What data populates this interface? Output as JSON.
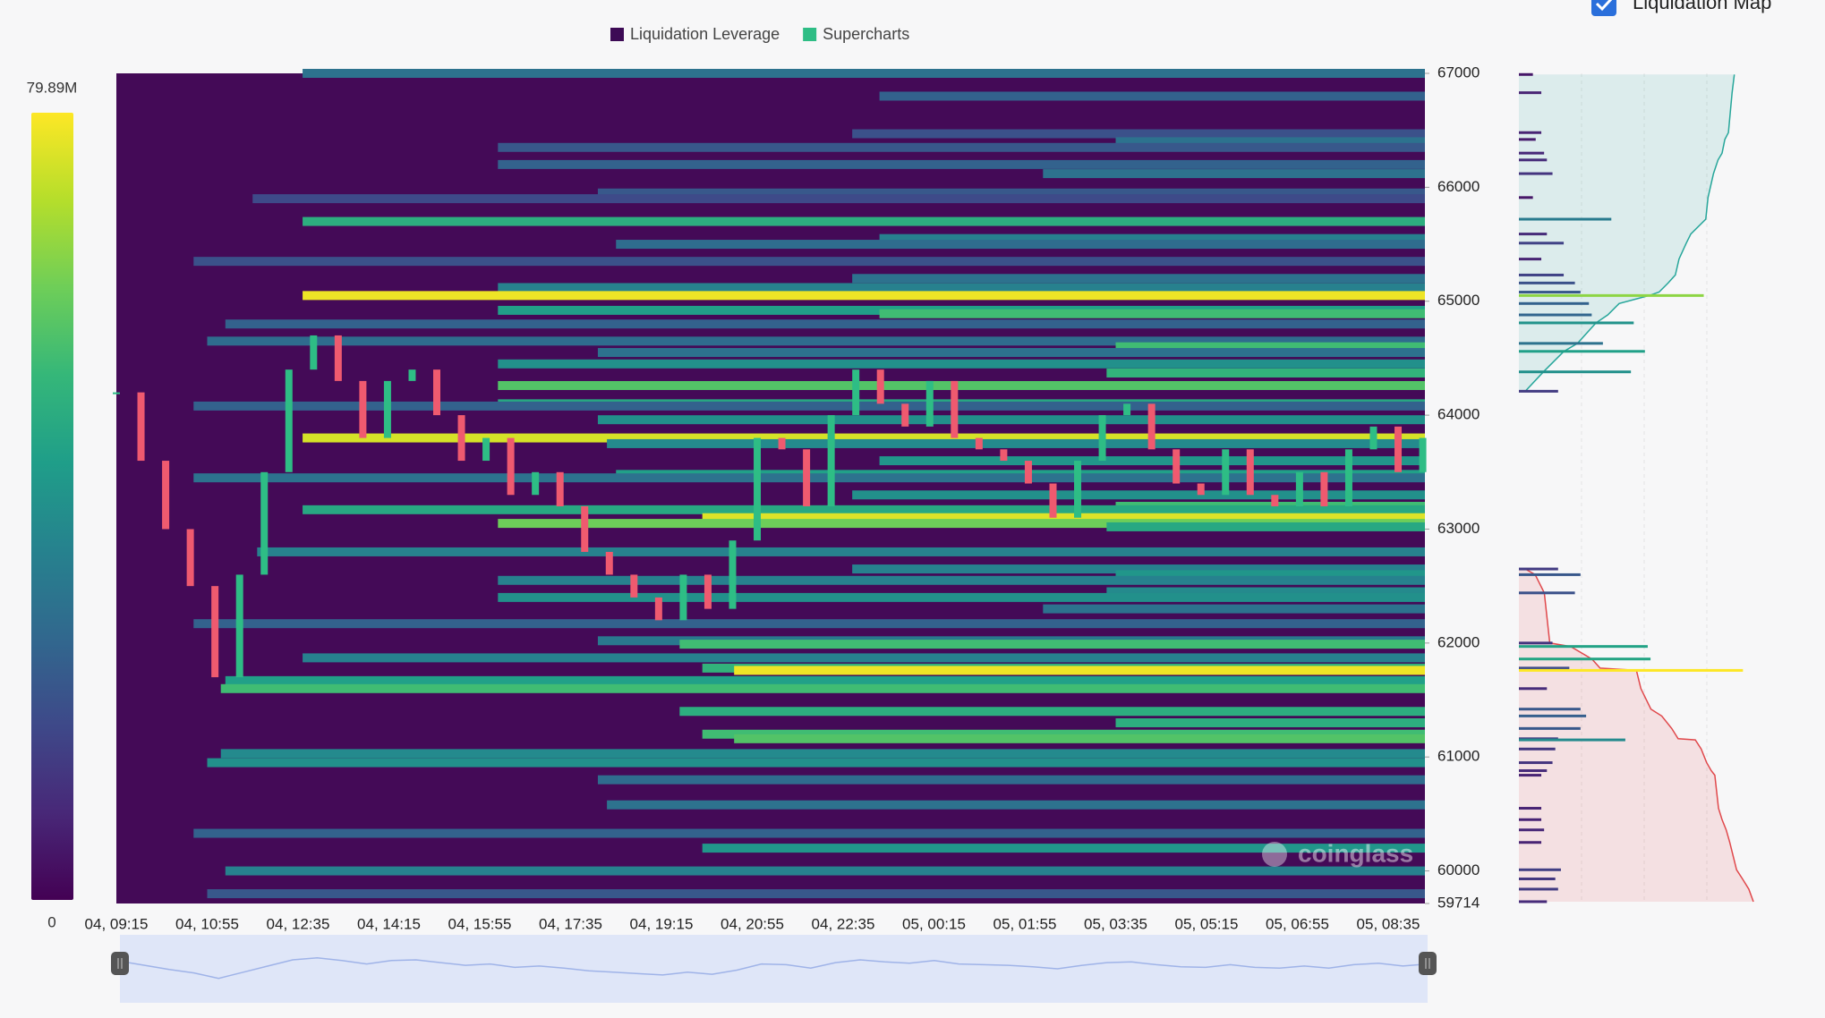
{
  "chart_data": {
    "type": "heatmap",
    "legend": [
      {
        "name": "Liquidation Leverage",
        "color": "#3d0a55"
      },
      {
        "name": "Supercharts",
        "color": "#2ebd85"
      }
    ],
    "categories": [
      "04, 09:15",
      "04, 10:55",
      "04, 12:35",
      "04, 14:15",
      "04, 15:55",
      "04, 17:35",
      "04, 19:15",
      "04, 20:55",
      "04, 22:35",
      "05, 00:15",
      "05, 01:55",
      "05, 03:35",
      "05, 05:15",
      "05, 06:55",
      "05, 08:35"
    ],
    "ylim": [
      59714,
      67000
    ],
    "yticks": [
      59714,
      60000,
      61000,
      62000,
      63000,
      64000,
      65000,
      66000,
      67000
    ],
    "zticks": [
      0,
      {
        "value": 79.89,
        "label": "79.89M"
      }
    ],
    "colorscale": [
      "#440154",
      "#482878",
      "#3e4989",
      "#31688e",
      "#26828e",
      "#1f9e89",
      "#35b779",
      "#6ece58",
      "#b5de2b",
      "#fde725"
    ],
    "bands": [
      [
        67000,
        2.05,
        30
      ],
      [
        66800,
        8.4,
        25
      ],
      [
        66470,
        8.1,
        20
      ],
      [
        66400,
        11.0,
        30
      ],
      [
        66350,
        4.2,
        22
      ],
      [
        66200,
        4.2,
        25
      ],
      [
        66120,
        10.2,
        30
      ],
      [
        65950,
        5.3,
        22
      ],
      [
        65900,
        1.5,
        18
      ],
      [
        65700,
        2.05,
        50
      ],
      [
        65550,
        8.4,
        35
      ],
      [
        65500,
        5.5,
        28
      ],
      [
        65350,
        0.85,
        20
      ],
      [
        65200,
        8.1,
        30
      ],
      [
        65120,
        4.2,
        35
      ],
      [
        65050,
        2.05,
        78
      ],
      [
        64920,
        4.2,
        45
      ],
      [
        64890,
        8.4,
        55
      ],
      [
        64800,
        1.2,
        25
      ],
      [
        64650,
        1.0,
        28
      ],
      [
        64600,
        11.0,
        55
      ],
      [
        64550,
        5.3,
        30
      ],
      [
        64450,
        4.2,
        40
      ],
      [
        64370,
        10.9,
        52
      ],
      [
        64260,
        4.2,
        58
      ],
      [
        64100,
        4.2,
        48
      ],
      [
        64080,
        0.85,
        25
      ],
      [
        63960,
        5.3,
        40
      ],
      [
        63800,
        2.05,
        75
      ],
      [
        63750,
        5.4,
        38
      ],
      [
        63600,
        8.4,
        42
      ],
      [
        63480,
        5.5,
        45
      ],
      [
        63450,
        0.85,
        30
      ],
      [
        63300,
        8.1,
        40
      ],
      [
        63200,
        11.0,
        55
      ],
      [
        63170,
        2.05,
        48
      ],
      [
        63100,
        6.45,
        76
      ],
      [
        63050,
        4.2,
        62
      ],
      [
        63020,
        10.9,
        48
      ],
      [
        62800,
        1.55,
        35
      ],
      [
        62650,
        8.1,
        35
      ],
      [
        62600,
        11.0,
        42
      ],
      [
        62550,
        4.2,
        35
      ],
      [
        62450,
        10.9,
        38
      ],
      [
        62400,
        4.2,
        40
      ],
      [
        62300,
        10.2,
        30
      ],
      [
        62170,
        0.85,
        25
      ],
      [
        62020,
        5.3,
        32
      ],
      [
        61990,
        6.2,
        55
      ],
      [
        61870,
        2.05,
        35
      ],
      [
        61780,
        6.45,
        52
      ],
      [
        61760,
        6.8,
        78
      ],
      [
        61670,
        1.2,
        45
      ],
      [
        61600,
        1.15,
        55
      ],
      [
        61400,
        6.2,
        50
      ],
      [
        61300,
        11.0,
        50
      ],
      [
        61200,
        6.45,
        55
      ],
      [
        61160,
        6.8,
        58
      ],
      [
        61030,
        1.15,
        38
      ],
      [
        60950,
        1.0,
        40
      ],
      [
        60800,
        5.3,
        28
      ],
      [
        60580,
        5.4,
        30
      ],
      [
        60330,
        0.85,
        25
      ],
      [
        60200,
        6.45,
        42
      ],
      [
        60000,
        1.2,
        35
      ],
      [
        59800,
        1.0,
        22
      ]
    ],
    "price": [
      64200,
      63600,
      63000,
      62500,
      61700,
      62600,
      63500,
      64400,
      64700,
      64300,
      63800,
      64300,
      64400,
      64000,
      63600,
      63800,
      63300,
      63500,
      63200,
      62800,
      62600,
      62400,
      62200,
      62600,
      62300,
      62900,
      63800,
      63700,
      63200,
      64000,
      64400,
      64100,
      63900,
      64300,
      63800,
      63700,
      63600,
      63400,
      63100,
      63600,
      64000,
      64100,
      63700,
      63400,
      63300,
      63700,
      63300,
      63200,
      63500,
      63200,
      63700,
      63900,
      63500,
      63800
    ],
    "up_color": "#2ebd85",
    "down_color": "#ef5a6f",
    "watermark": "coinglass",
    "liquidation_map": {
      "label": "Liquidation Map",
      "short_color": "#26a69a",
      "long_color": "#e0484b",
      "bars": [
        [
          66990,
          5
        ],
        [
          66830,
          8
        ],
        [
          66480,
          8
        ],
        [
          66420,
          6
        ],
        [
          66300,
          9
        ],
        [
          66240,
          10
        ],
        [
          66120,
          12
        ],
        [
          65910,
          5
        ],
        [
          65720,
          33
        ],
        [
          65590,
          10
        ],
        [
          65510,
          16
        ],
        [
          65370,
          8
        ],
        [
          65230,
          16
        ],
        [
          65160,
          20
        ],
        [
          65080,
          22
        ],
        [
          65050,
          66
        ],
        [
          64980,
          25
        ],
        [
          64880,
          26
        ],
        [
          64810,
          41
        ],
        [
          64630,
          30
        ],
        [
          64560,
          45
        ],
        [
          64380,
          40
        ],
        [
          64210,
          14
        ],
        [
          62650,
          14
        ],
        [
          62600,
          22
        ],
        [
          62440,
          20
        ],
        [
          62000,
          12
        ],
        [
          61970,
          46
        ],
        [
          61860,
          47
        ],
        [
          61780,
          18
        ],
        [
          61760,
          80
        ],
        [
          61600,
          10
        ],
        [
          61420,
          22
        ],
        [
          61360,
          24
        ],
        [
          61250,
          22
        ],
        [
          61160,
          14
        ],
        [
          61150,
          38
        ],
        [
          61070,
          13
        ],
        [
          60950,
          12
        ],
        [
          60880,
          10
        ],
        [
          60840,
          8
        ],
        [
          60550,
          8
        ],
        [
          60450,
          8
        ],
        [
          60360,
          9
        ],
        [
          60250,
          8
        ],
        [
          60010,
          15
        ],
        [
          59930,
          13
        ],
        [
          59840,
          14
        ],
        [
          59730,
          10
        ]
      ]
    }
  }
}
